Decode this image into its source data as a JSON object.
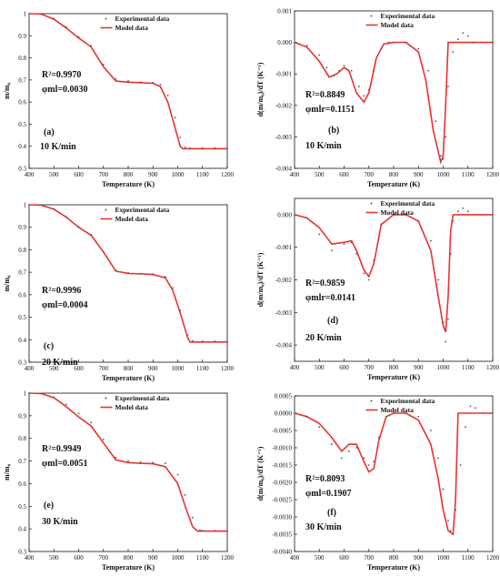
{
  "legend": {
    "experimental": "Experimental data",
    "model": "Model data"
  },
  "colors": {
    "model": "#e8322f",
    "experimental": "#555555",
    "axis": "#111111"
  },
  "chart_data": [
    {
      "panel": "(a)",
      "type": "scatter+line",
      "xlabel": "Temperature (K)",
      "ylabel": "m/m₀",
      "xlim": [
        400,
        1200
      ],
      "ylim": [
        0.3,
        1.0
      ],
      "xticks": [
        400,
        500,
        600,
        700,
        800,
        900,
        1000,
        1100,
        1200
      ],
      "yticks": [
        0.3,
        0.4,
        0.5,
        0.6,
        0.7,
        0.8,
        0.9,
        1.0
      ],
      "r2": "R²=0.9970",
      "phi": "φml=0.0030",
      "rate": "10 K/min",
      "legend_position": "top-right",
      "model": {
        "x": [
          400,
          450,
          500,
          550,
          600,
          650,
          700,
          750,
          800,
          850,
          900,
          930,
          960,
          990,
          1010,
          1020,
          1050,
          1100,
          1150,
          1200
        ],
        "y": [
          1.0,
          0.998,
          0.975,
          0.935,
          0.89,
          0.85,
          0.76,
          0.695,
          0.69,
          0.688,
          0.685,
          0.67,
          0.6,
          0.48,
          0.4,
          0.389,
          0.389,
          0.389,
          0.389,
          0.389
        ]
      },
      "experimental": {
        "x": [
          400,
          450,
          500,
          550,
          600,
          650,
          700,
          750,
          800,
          850,
          900,
          930,
          960,
          990,
          1010,
          1030,
          1050,
          1100,
          1150,
          1200
        ],
        "y": [
          1.0,
          0.998,
          0.978,
          0.94,
          0.895,
          0.855,
          0.77,
          0.705,
          0.695,
          0.69,
          0.688,
          0.68,
          0.63,
          0.53,
          0.44,
          0.395,
          0.392,
          0.392,
          0.392,
          0.392
        ]
      }
    },
    {
      "panel": "(b)",
      "type": "scatter+line",
      "xlabel": "Temperature (K)",
      "ylabel": "d(m/m₀)/dT (K⁻¹)",
      "xlim": [
        400,
        1200
      ],
      "ylim": [
        -0.004,
        0.001
      ],
      "xticks": [
        400,
        500,
        600,
        700,
        800,
        900,
        1000,
        1100,
        1200
      ],
      "yticks": [
        -0.004,
        -0.003,
        -0.002,
        -0.001,
        0.0,
        0.001
      ],
      "ytick_labels": [
        "-0.004",
        "-0.003",
        "-0.002",
        "-0.001",
        "0.000",
        "0.001"
      ],
      "r2": "R²=0.8849",
      "phi": "φmlr=0.1151",
      "rate": "10 K/min",
      "legend_position": "top-right",
      "model": {
        "x": [
          400,
          450,
          500,
          540,
          570,
          600,
          620,
          650,
          680,
          700,
          730,
          760,
          800,
          850,
          900,
          930,
          960,
          990,
          1000,
          1010,
          1020,
          1030,
          1100,
          1200
        ],
        "y": [
          0.0,
          -0.00015,
          -0.0006,
          -0.0011,
          -0.001,
          -0.0008,
          -0.0009,
          -0.0016,
          -0.0019,
          -0.0016,
          -0.0005,
          -5e-05,
          0.0,
          0.0,
          -0.0003,
          -0.0012,
          -0.0028,
          -0.0038,
          -0.0036,
          -0.002,
          0.0,
          0.0,
          0.0,
          0.0
        ]
      },
      "experimental": {
        "x": [
          400,
          450,
          500,
          530,
          560,
          580,
          600,
          630,
          660,
          680,
          700,
          720,
          750,
          780,
          800,
          850,
          900,
          940,
          970,
          990,
          1000,
          1010,
          1020,
          1040,
          1060,
          1080,
          1100,
          1120,
          1200
        ],
        "y": [
          0.0,
          -0.0001,
          -0.0004,
          -0.0008,
          -0.00105,
          -0.0009,
          -0.00075,
          -0.0009,
          -0.0014,
          -0.0017,
          -0.0015,
          -0.0009,
          -0.0002,
          0.0,
          0.0,
          0.0,
          -0.0002,
          -0.0009,
          -0.0025,
          -0.0036,
          -0.0037,
          -0.003,
          -0.0014,
          -0.0003,
          0.0001,
          0.0003,
          0.0002,
          0.0,
          0.0
        ]
      }
    },
    {
      "panel": "(c)",
      "type": "scatter+line",
      "xlabel": "Temperature (K)",
      "ylabel": "m/m₀",
      "xlim": [
        400,
        1200
      ],
      "ylim": [
        0.3,
        1.0
      ],
      "xticks": [
        400,
        500,
        600,
        700,
        800,
        900,
        1000,
        1100,
        1200
      ],
      "yticks": [
        0.3,
        0.4,
        0.5,
        0.6,
        0.7,
        0.8,
        0.9,
        1.0
      ],
      "r2": "R²=0.9996",
      "phi": "φml=0.0004",
      "rate": "20 K/min",
      "legend_position": "top-right",
      "model": {
        "x": [
          400,
          450,
          500,
          550,
          600,
          650,
          700,
          750,
          800,
          850,
          900,
          950,
          980,
          1010,
          1040,
          1050,
          1100,
          1150,
          1200
        ],
        "y": [
          1.0,
          0.998,
          0.98,
          0.945,
          0.9,
          0.865,
          0.79,
          0.705,
          0.695,
          0.693,
          0.69,
          0.675,
          0.62,
          0.52,
          0.41,
          0.39,
          0.39,
          0.39,
          0.39
        ]
      },
      "experimental": {
        "x": [
          400,
          450,
          500,
          550,
          600,
          650,
          700,
          750,
          800,
          850,
          900,
          950,
          980,
          1010,
          1040,
          1060,
          1100,
          1150,
          1200
        ],
        "y": [
          1.0,
          0.998,
          0.98,
          0.946,
          0.902,
          0.867,
          0.792,
          0.708,
          0.697,
          0.694,
          0.692,
          0.68,
          0.63,
          0.53,
          0.42,
          0.395,
          0.393,
          0.393,
          0.393
        ]
      }
    },
    {
      "panel": "(d)",
      "type": "scatter+line",
      "xlabel": "Temperature (K)",
      "ylabel": "d(m/m₀)/dT (K⁻¹)",
      "xlim": [
        400,
        1200
      ],
      "ylim": [
        -0.0045,
        0.0005
      ],
      "xticks": [
        400,
        500,
        600,
        700,
        800,
        900,
        1000,
        1100,
        1200
      ],
      "yticks": [
        -0.004,
        -0.003,
        -0.002,
        -0.001,
        0.0
      ],
      "ytick_labels": [
        "-0.004",
        "-0.003",
        "-0.002",
        "-0.001",
        "0.000"
      ],
      "r2": "R²=0.9859",
      "phi": "φmlr=0.0141",
      "rate": "20 K/min",
      "legend_position": "top-right",
      "model": {
        "x": [
          400,
          450,
          500,
          550,
          600,
          630,
          650,
          680,
          700,
          720,
          750,
          800,
          850,
          900,
          950,
          980,
          1000,
          1010,
          1020,
          1030,
          1040,
          1100,
          1200
        ],
        "y": [
          0.0,
          -0.0001,
          -0.0004,
          -0.0009,
          -0.00085,
          -0.0008,
          -0.0011,
          -0.0017,
          -0.0019,
          -0.0015,
          -0.0003,
          0.0,
          0.0,
          -0.0002,
          -0.0011,
          -0.0025,
          -0.0034,
          -0.0036,
          -0.0025,
          -0.0005,
          0.0,
          0.0,
          0.0
        ]
      },
      "experimental": {
        "x": [
          400,
          450,
          500,
          550,
          600,
          630,
          650,
          680,
          700,
          720,
          750,
          800,
          850,
          900,
          950,
          980,
          1000,
          1010,
          1020,
          1030,
          1040,
          1060,
          1080,
          1100,
          1200
        ],
        "y": [
          0.0,
          -0.0001,
          -0.0006,
          -0.0011,
          -0.0009,
          -0.00085,
          -0.0012,
          -0.0018,
          -0.002,
          -0.0014,
          -0.0003,
          0.0,
          0.0,
          -0.0002,
          -0.0008,
          -0.002,
          -0.0033,
          -0.0039,
          -0.0032,
          -0.0012,
          -0.0002,
          0.0001,
          0.0002,
          0.0001,
          0.0
        ]
      }
    },
    {
      "panel": "(e)",
      "type": "scatter+line",
      "xlabel": "Temperature (K)",
      "ylabel": "m/m₀",
      "xlim": [
        400,
        1200
      ],
      "ylim": [
        0.3,
        1.0
      ],
      "xticks": [
        400,
        500,
        600,
        700,
        800,
        900,
        1000,
        1100,
        1200
      ],
      "yticks": [
        0.3,
        0.4,
        0.5,
        0.6,
        0.7,
        0.8,
        0.9,
        1.0
      ],
      "r2": "R²=0.9949",
      "phi": "φml=0.0051",
      "rate": "30 K/min",
      "legend_position": "top-right",
      "model": {
        "x": [
          400,
          450,
          500,
          550,
          600,
          650,
          700,
          750,
          800,
          850,
          900,
          950,
          1000,
          1030,
          1060,
          1080,
          1100,
          1150,
          1200
        ],
        "y": [
          1.0,
          0.998,
          0.98,
          0.94,
          0.895,
          0.855,
          0.78,
          0.705,
          0.693,
          0.69,
          0.688,
          0.675,
          0.6,
          0.5,
          0.41,
          0.39,
          0.39,
          0.39,
          0.39
        ]
      },
      "experimental": {
        "x": [
          400,
          450,
          500,
          550,
          600,
          650,
          700,
          750,
          800,
          850,
          900,
          950,
          1000,
          1030,
          1060,
          1090,
          1100,
          1150,
          1200
        ],
        "y": [
          1.0,
          0.998,
          0.982,
          0.95,
          0.91,
          0.87,
          0.795,
          0.715,
          0.7,
          0.695,
          0.693,
          0.69,
          0.64,
          0.55,
          0.45,
          0.395,
          0.392,
          0.392,
          0.392
        ]
      }
    },
    {
      "panel": "(f)",
      "type": "scatter+line",
      "xlabel": "Temperature (K)",
      "ylabel": "d(m/m₀)/dT (K⁻¹)",
      "xlim": [
        400,
        1200
      ],
      "ylim": [
        -0.004,
        0.0005
      ],
      "xticks": [
        400,
        500,
        600,
        700,
        800,
        900,
        1000,
        1100,
        1200
      ],
      "yticks": [
        -0.004,
        -0.0035,
        -0.003,
        -0.0025,
        -0.002,
        -0.0015,
        -0.001,
        -0.0005,
        0.0,
        0.0005
      ],
      "ytick_labels": [
        "-0.0040",
        "-0.0035",
        "-0.0030",
        "-0.0025",
        "-0.0020",
        "-0.0015",
        "-0.0010",
        "-0.0005",
        "0.0000",
        "0.0005"
      ],
      "r2": "R²=0.8093",
      "phi": "φml=0.1907",
      "rate": "30 K/min",
      "legend_position": "top-right",
      "model": {
        "x": [
          400,
          450,
          500,
          550,
          590,
          620,
          650,
          680,
          700,
          720,
          740,
          770,
          800,
          850,
          900,
          950,
          980,
          1000,
          1020,
          1040,
          1050,
          1060,
          1100,
          1200
        ],
        "y": [
          0.0,
          -0.0001,
          -0.0003,
          -0.0007,
          -0.0011,
          -0.0009,
          -0.0009,
          -0.0014,
          -0.0017,
          -0.0016,
          -0.0008,
          -0.0001,
          0.0,
          0.0,
          -0.0002,
          -0.0009,
          -0.0019,
          -0.0028,
          -0.0034,
          -0.0035,
          -0.0025,
          0.0,
          0.0,
          0.0
        ]
      },
      "experimental": {
        "x": [
          400,
          450,
          500,
          550,
          590,
          620,
          650,
          680,
          700,
          720,
          740,
          770,
          800,
          850,
          900,
          950,
          980,
          1000,
          1020,
          1030,
          1050,
          1070,
          1090,
          1110,
          1130,
          1160,
          1200
        ],
        "y": [
          0.0,
          -0.0001,
          -0.0004,
          -0.0009,
          -0.0013,
          -0.0011,
          -0.001,
          -0.0013,
          -0.0015,
          -0.0014,
          -0.0007,
          -0.0001,
          0.0,
          0.0,
          -0.0001,
          -0.0005,
          -0.0013,
          -0.0022,
          -0.0031,
          -0.0034,
          -0.0028,
          -0.0015,
          -0.0004,
          0.0002,
          0.00015,
          0.0,
          0.0
        ]
      }
    }
  ]
}
